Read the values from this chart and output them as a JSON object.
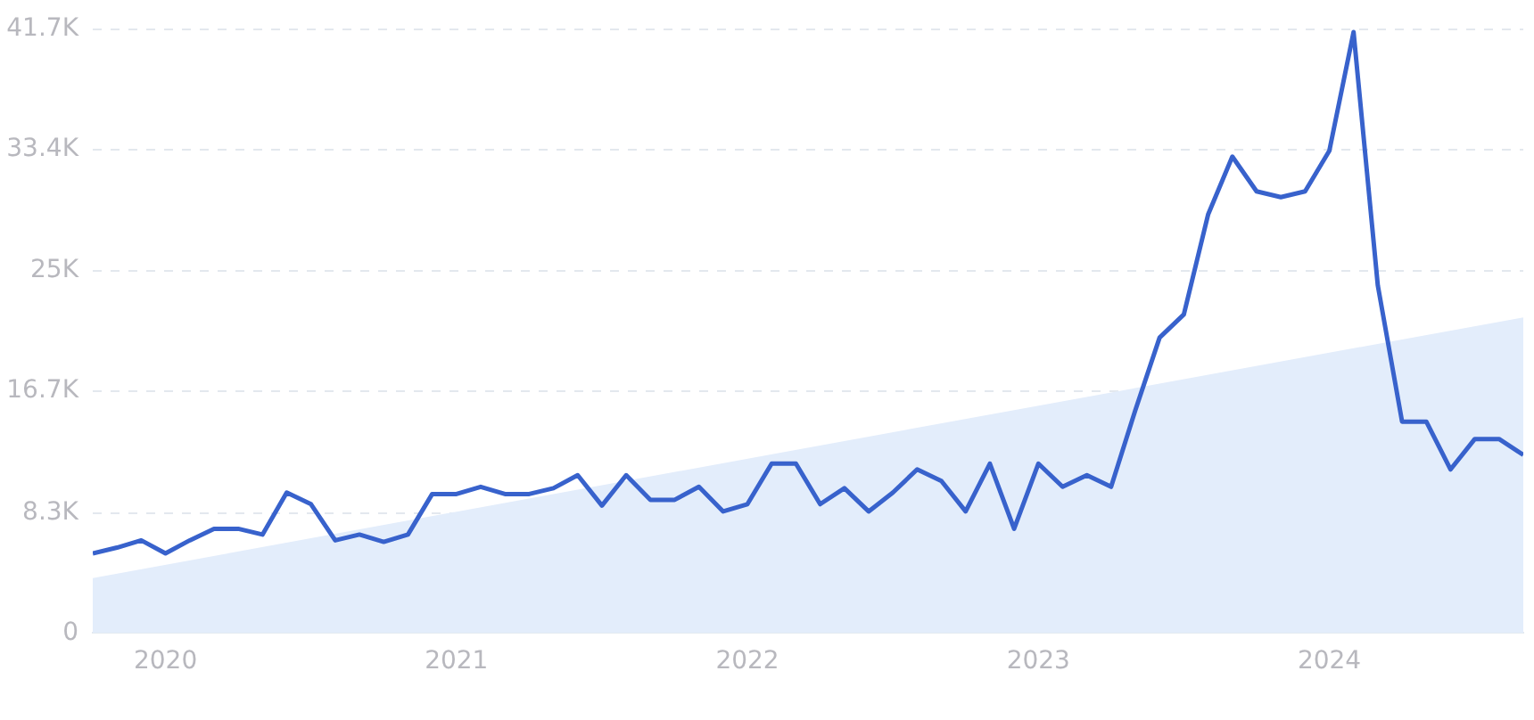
{
  "chart_data": {
    "type": "line",
    "xlim": [
      "2019-10",
      "2024-09"
    ],
    "ylim": [
      0,
      41700
    ],
    "xticks": [
      {
        "value": "2020-01",
        "label": "2020"
      },
      {
        "value": "2021-01",
        "label": "2021"
      },
      {
        "value": "2022-01",
        "label": "2022"
      },
      {
        "value": "2023-01",
        "label": "2023"
      },
      {
        "value": "2024-01",
        "label": "2024"
      }
    ],
    "yticks": [
      0,
      {
        "value": 8300,
        "label": "8.3K"
      },
      {
        "value": 16700,
        "label": "16.7K"
      },
      {
        "value": 25000,
        "label": "25K"
      },
      {
        "value": 33400,
        "label": "33.4K"
      },
      {
        "value": 41700,
        "label": "41.7K"
      }
    ],
    "grid": "y",
    "legend": false,
    "marker": "none",
    "line_style": "solid",
    "series": [
      {
        "type": "area",
        "color": "#e3edfb",
        "x": [
          "2019-10",
          "2024-09"
        ],
        "values": [
          3800,
          21800
        ]
      },
      {
        "type": "line",
        "color": "#3862cc",
        "x": [
          "2019-10",
          "2019-11",
          "2019-12",
          "2020-01",
          "2020-02",
          "2020-03",
          "2020-04",
          "2020-05",
          "2020-06",
          "2020-07",
          "2020-08",
          "2020-09",
          "2020-10",
          "2020-11",
          "2020-12",
          "2021-01",
          "2021-02",
          "2021-03",
          "2021-04",
          "2021-05",
          "2021-06",
          "2021-07",
          "2021-08",
          "2021-09",
          "2021-10",
          "2021-11",
          "2021-12",
          "2022-01",
          "2022-02",
          "2022-03",
          "2022-04",
          "2022-05",
          "2022-06",
          "2022-07",
          "2022-08",
          "2022-09",
          "2022-10",
          "2022-11",
          "2022-12",
          "2023-01",
          "2023-02",
          "2023-03",
          "2023-04",
          "2023-05",
          "2023-06",
          "2023-07",
          "2023-08",
          "2023-09",
          "2023-10",
          "2023-11",
          "2023-12",
          "2024-01",
          "2024-02",
          "2024-03",
          "2024-04",
          "2024-05",
          "2024-06",
          "2024-07",
          "2024-08",
          "2024-09"
        ],
        "values": [
          5500,
          5900,
          6400,
          5500,
          6400,
          7200,
          7200,
          6800,
          9700,
          8900,
          6400,
          6800,
          6300,
          6800,
          9600,
          9600,
          10100,
          9600,
          9600,
          10000,
          10900,
          8800,
          10900,
          9200,
          9200,
          10100,
          8400,
          8900,
          11700,
          11700,
          8900,
          10000,
          8400,
          9700,
          11300,
          10500,
          8400,
          11700,
          7200,
          11700,
          10100,
          10900,
          10100,
          15400,
          20400,
          22000,
          28900,
          32900,
          30500,
          30100,
          30500,
          33300,
          41500,
          24000,
          14600,
          14600,
          11300,
          13400,
          13400,
          12300
        ]
      }
    ]
  }
}
